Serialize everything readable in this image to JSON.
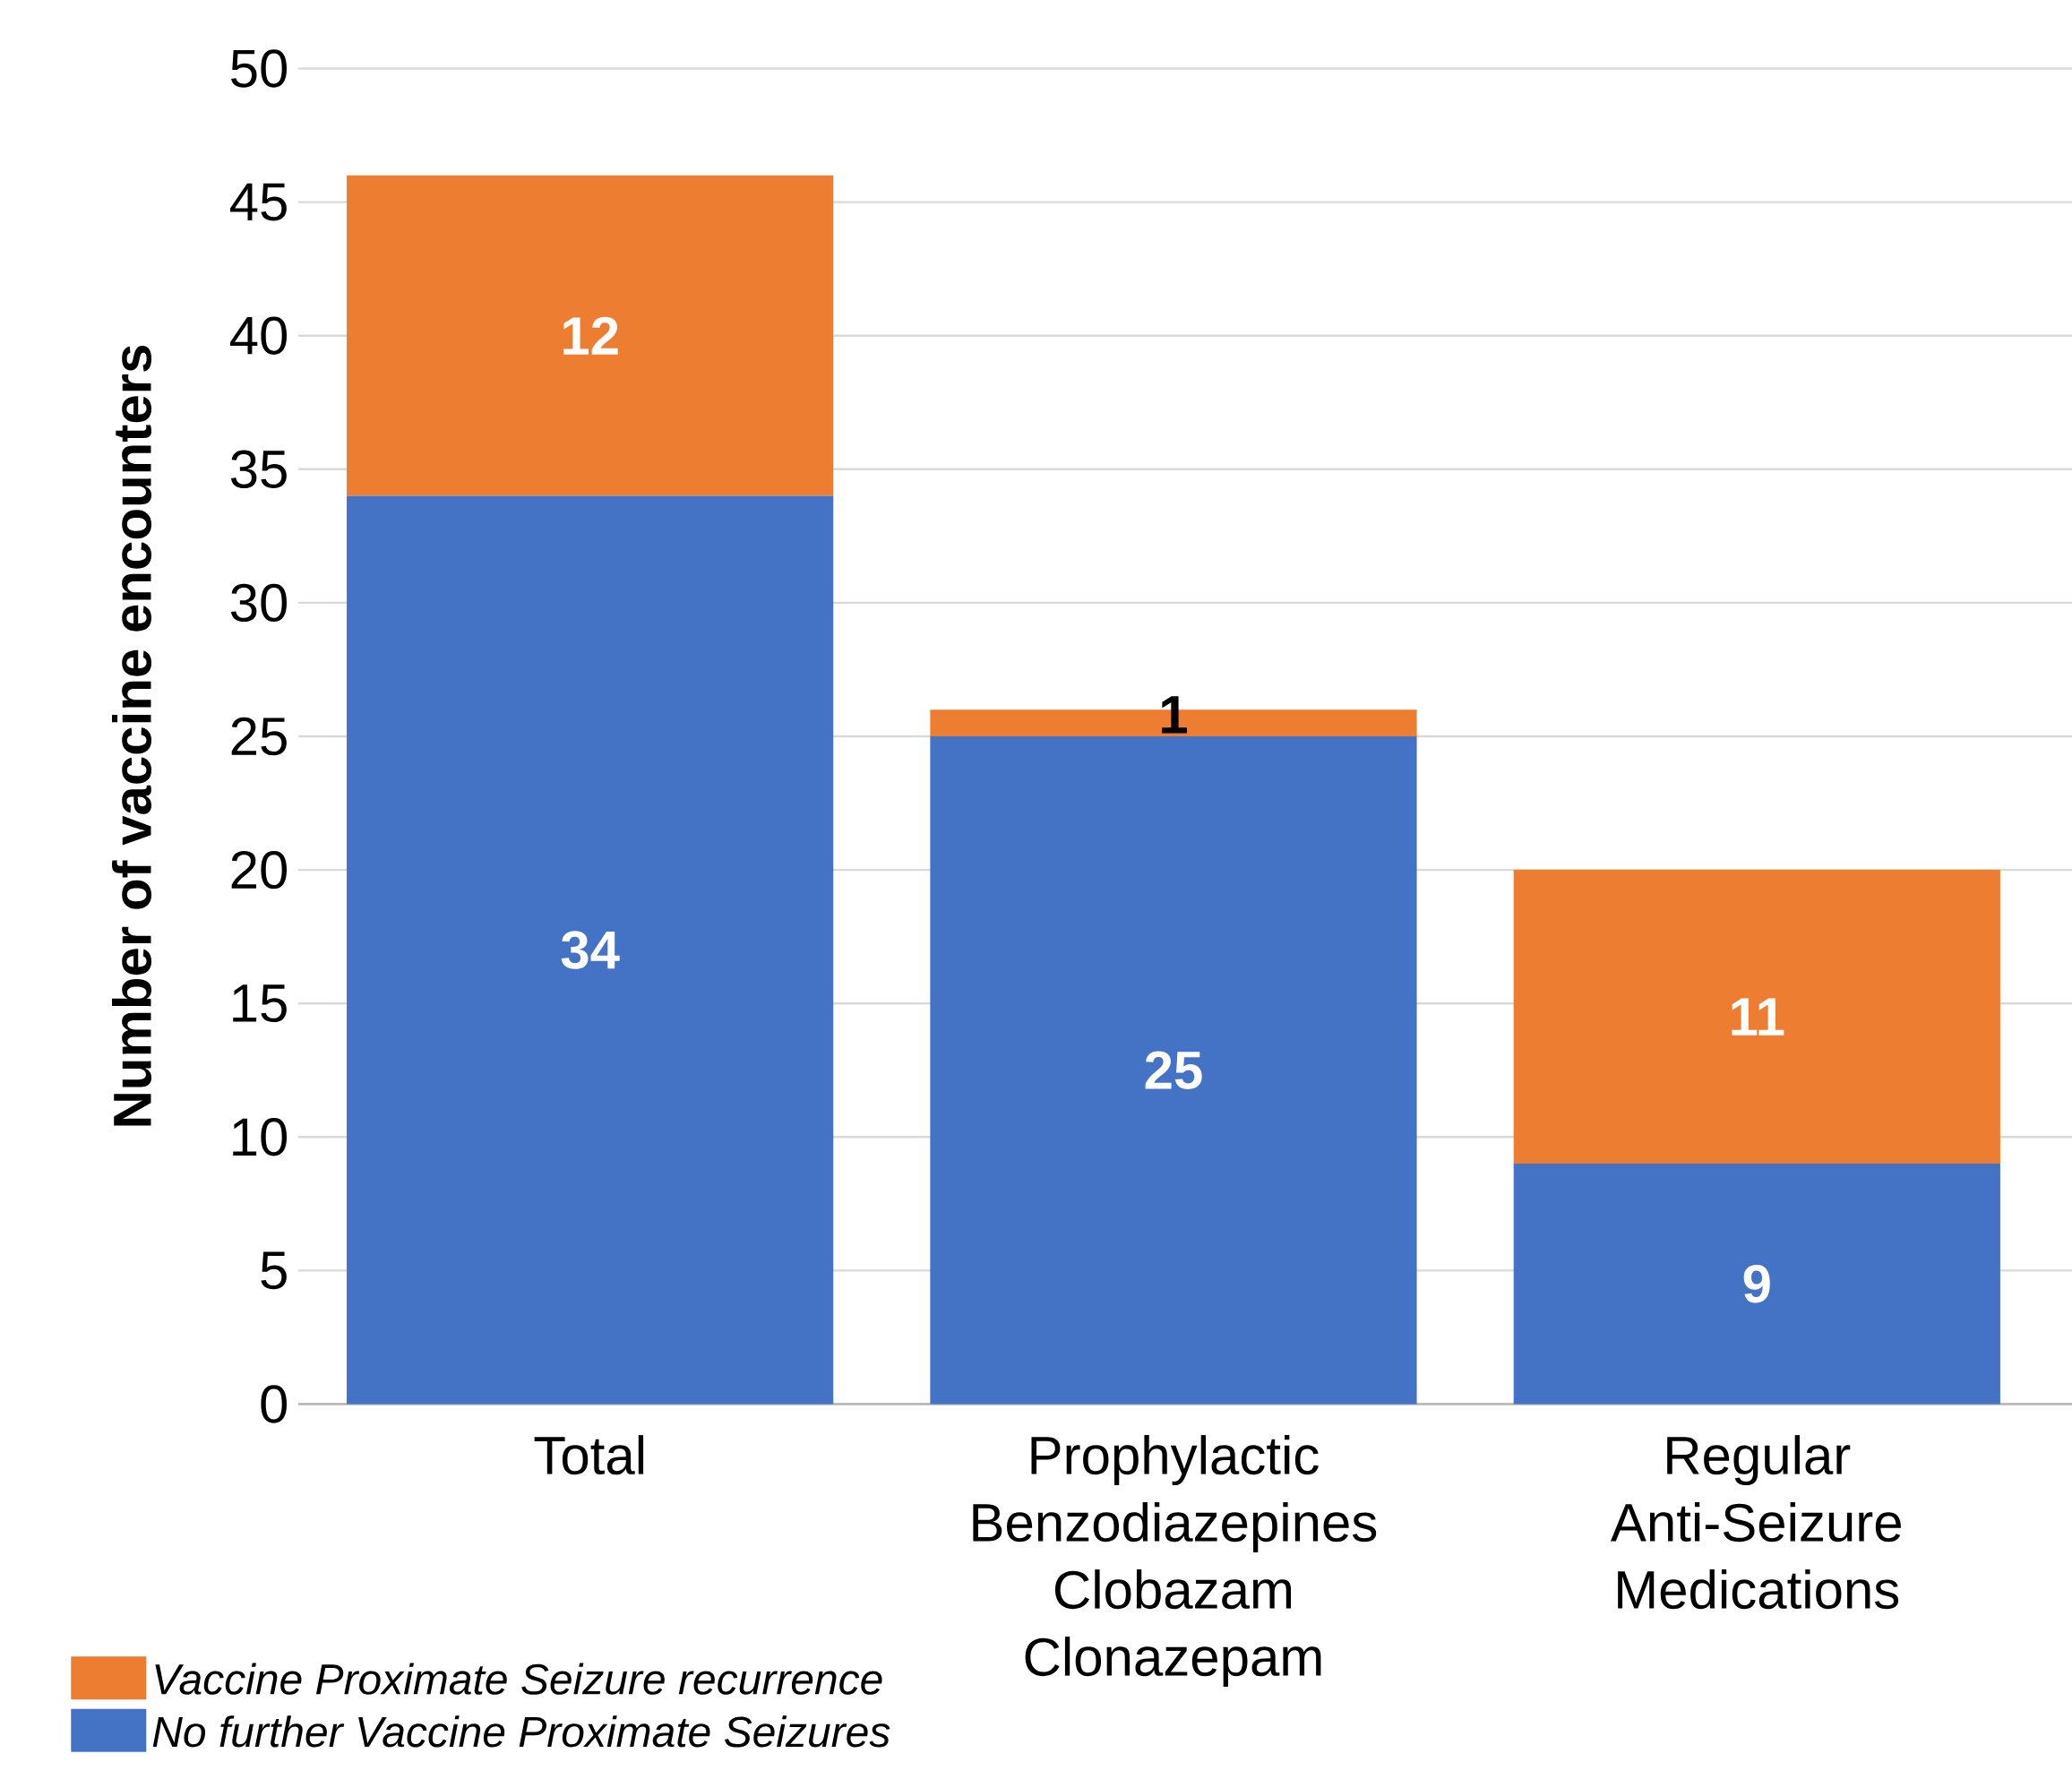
{
  "chart_data": {
    "type": "bar",
    "stacked": true,
    "ylabel": "Number of vaccine encounters",
    "categories": [
      "Total",
      "Prophylactic Benzodiazepines Clobazam Clonazepam",
      "Regular Anti-Seizure Medications"
    ],
    "series": [
      {
        "name": "No further Vaccine Proximate Seizures",
        "color": "#4472c4",
        "values": [
          34,
          25,
          9
        ]
      },
      {
        "name": "Vaccine Proximate Seizure recurrence",
        "color": "#ed7d31",
        "values": [
          12,
          1,
          11
        ]
      }
    ],
    "ylim": [
      0,
      50
    ],
    "yticks": [
      0,
      5,
      10,
      15,
      20,
      25,
      30,
      35,
      40,
      45,
      50
    ],
    "grid": "y",
    "legend": "bottom left",
    "data_labels": true
  }
}
